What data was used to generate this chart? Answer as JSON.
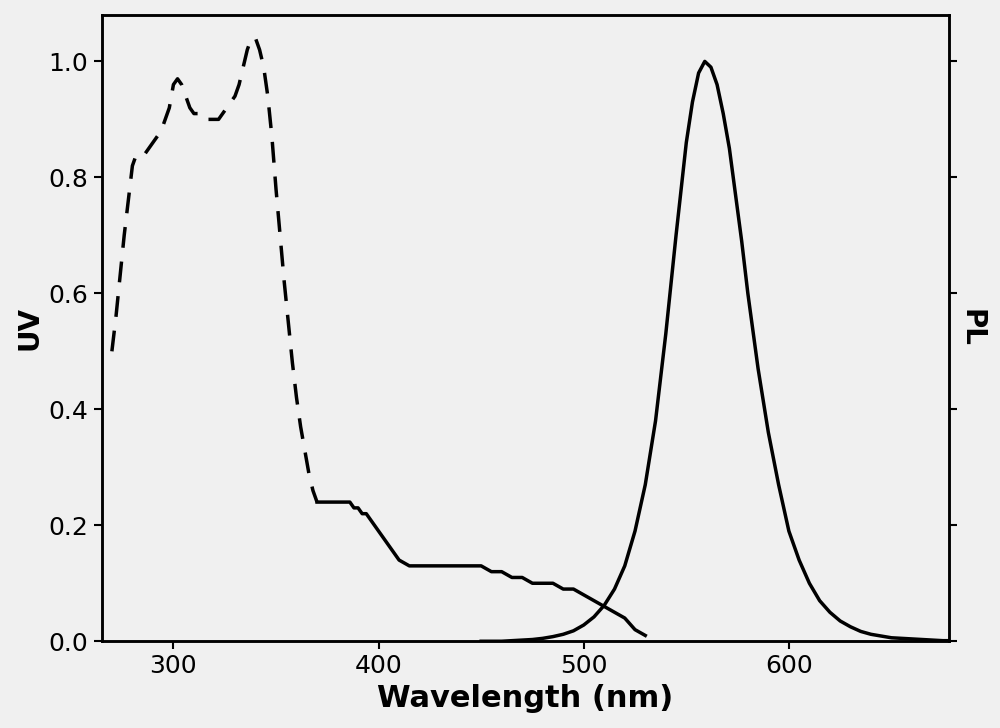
{
  "title": "",
  "xlabel": "Wavelength (nm)",
  "ylabel_left": "UV",
  "ylabel_right": "PL",
  "xlim": [
    265,
    678
  ],
  "ylim": [
    0.0,
    1.08
  ],
  "background_color": "#f0f0f0",
  "line_color": "#000000",
  "line_width": 2.5,
  "xlabel_fontsize": 22,
  "ylabel_fontsize": 20,
  "tick_fontsize": 18,
  "uv_dashed_cutoff": 370,
  "uv_curve": {
    "x": [
      270,
      272,
      274,
      276,
      278,
      280,
      282,
      284,
      286,
      288,
      290,
      292,
      294,
      296,
      298,
      300,
      302,
      304,
      306,
      308,
      310,
      312,
      314,
      316,
      318,
      320,
      322,
      324,
      326,
      328,
      330,
      332,
      334,
      336,
      338,
      340,
      342,
      344,
      346,
      348,
      350,
      352,
      354,
      356,
      358,
      360,
      362,
      364,
      366,
      368,
      370,
      372,
      374,
      376,
      378,
      380,
      382,
      384,
      386,
      388,
      390,
      392,
      394,
      396,
      398,
      400,
      402,
      404,
      406,
      408,
      410,
      415,
      420,
      425,
      430,
      435,
      440,
      445,
      450,
      455,
      460,
      465,
      470,
      475,
      480,
      485,
      490,
      495,
      500,
      505,
      510,
      515,
      520,
      525,
      530
    ],
    "y": [
      0.5,
      0.56,
      0.63,
      0.7,
      0.76,
      0.82,
      0.84,
      0.84,
      0.84,
      0.85,
      0.86,
      0.87,
      0.88,
      0.9,
      0.92,
      0.96,
      0.97,
      0.96,
      0.94,
      0.92,
      0.91,
      0.91,
      0.9,
      0.9,
      0.9,
      0.9,
      0.9,
      0.91,
      0.92,
      0.93,
      0.94,
      0.96,
      0.99,
      1.02,
      1.04,
      1.04,
      1.02,
      0.99,
      0.94,
      0.87,
      0.78,
      0.7,
      0.62,
      0.55,
      0.48,
      0.42,
      0.37,
      0.33,
      0.29,
      0.26,
      0.24,
      0.24,
      0.24,
      0.24,
      0.24,
      0.24,
      0.24,
      0.24,
      0.24,
      0.23,
      0.23,
      0.22,
      0.22,
      0.21,
      0.2,
      0.19,
      0.18,
      0.17,
      0.16,
      0.15,
      0.14,
      0.13,
      0.13,
      0.13,
      0.13,
      0.13,
      0.13,
      0.13,
      0.13,
      0.12,
      0.12,
      0.11,
      0.11,
      0.1,
      0.1,
      0.1,
      0.09,
      0.09,
      0.08,
      0.07,
      0.06,
      0.05,
      0.04,
      0.02,
      0.01
    ]
  },
  "pl_curve": {
    "x": [
      450,
      455,
      460,
      465,
      470,
      475,
      480,
      485,
      490,
      495,
      500,
      505,
      510,
      515,
      520,
      525,
      530,
      535,
      540,
      545,
      550,
      553,
      556,
      559,
      562,
      565,
      568,
      571,
      574,
      577,
      580,
      585,
      590,
      595,
      600,
      605,
      610,
      615,
      620,
      625,
      630,
      635,
      640,
      645,
      650,
      655,
      660,
      665,
      670,
      675,
      678
    ],
    "y": [
      0.0,
      0.0,
      0.0,
      0.001,
      0.002,
      0.003,
      0.005,
      0.008,
      0.012,
      0.018,
      0.028,
      0.042,
      0.062,
      0.09,
      0.13,
      0.19,
      0.27,
      0.38,
      0.53,
      0.7,
      0.86,
      0.93,
      0.98,
      1.0,
      0.99,
      0.96,
      0.91,
      0.85,
      0.77,
      0.69,
      0.6,
      0.47,
      0.36,
      0.27,
      0.19,
      0.14,
      0.1,
      0.07,
      0.05,
      0.035,
      0.025,
      0.017,
      0.012,
      0.009,
      0.006,
      0.005,
      0.004,
      0.003,
      0.002,
      0.001,
      0.001
    ]
  }
}
